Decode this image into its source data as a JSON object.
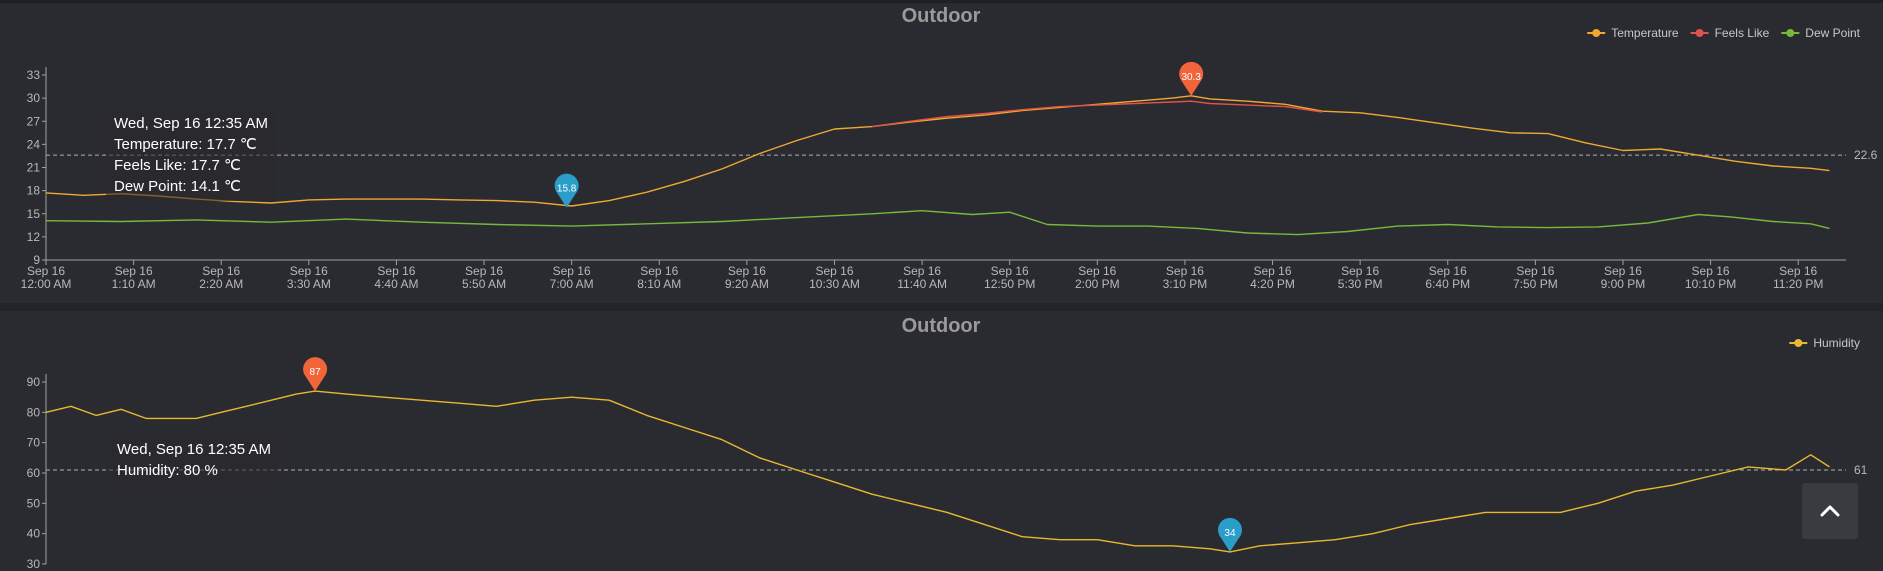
{
  "colors": {
    "temperature": "#f0a830",
    "feels_like": "#e0524a",
    "dew_point": "#78b83a",
    "humidity": "#e8b830",
    "max_marker": "#f2643a",
    "min_marker": "#2a9ec8",
    "axis": "#a0a0a0"
  },
  "tooltips": {
    "top": {
      "date": "Wed, Sep 16 12:35 AM",
      "temperature": "Temperature: 17.7 ℃",
      "feels_like": "Feels Like: 17.7 ℃",
      "dew_point": "Dew Point: 14.1 ℃"
    },
    "bottom": {
      "date": "Wed, Sep 16 12:35 AM",
      "humidity": "Humidity: 80 %"
    }
  },
  "scroll_top_icon": "chevron-up-icon",
  "chart_data": [
    {
      "type": "line",
      "title": "Outdoor",
      "x_ticks": [
        "Sep 16|12:00 AM",
        "Sep 16|1:10 AM",
        "Sep 16|2:20 AM",
        "Sep 16|3:30 AM",
        "Sep 16|4:40 AM",
        "Sep 16|5:50 AM",
        "Sep 16|7:00 AM",
        "Sep 16|8:10 AM",
        "Sep 16|9:20 AM",
        "Sep 16|10:30 AM",
        "Sep 16|11:40 AM",
        "Sep 16|12:50 PM",
        "Sep 16|2:00 PM",
        "Sep 16|3:10 PM",
        "Sep 16|4:20 PM",
        "Sep 16|5:30 PM",
        "Sep 16|6:40 PM",
        "Sep 16|7:50 PM",
        "Sep 16|9:00 PM",
        "Sep 16|10:10 PM",
        "Sep 16|11:20 PM"
      ],
      "x_minutes": [
        0,
        70,
        140,
        210,
        280,
        350,
        420,
        490,
        560,
        630,
        700,
        770,
        840,
        910,
        980,
        1050,
        1120,
        1190,
        1260,
        1330,
        1400
      ],
      "x_range": [
        0,
        1435
      ],
      "y_ticks": [
        9,
        12,
        15,
        18,
        21,
        24,
        27,
        30,
        33
      ],
      "ylim": [
        9,
        33
      ],
      "legend": [
        "Temperature",
        "Feels Like",
        "Dew Point"
      ],
      "legend_position": "top-right",
      "mark_line": {
        "value": 22.6,
        "label": "22.6"
      },
      "max_point": {
        "label": "30.3",
        "x": 915,
        "y": 30.3
      },
      "min_point": {
        "label": "15.8",
        "x": 416,
        "y": 15.8
      },
      "series": [
        {
          "name": "Temperature",
          "key": "temperature",
          "x": [
            0,
            30,
            60,
            90,
            120,
            150,
            180,
            210,
            240,
            270,
            300,
            330,
            360,
            390,
            420,
            450,
            480,
            510,
            540,
            570,
            600,
            630,
            660,
            690,
            720,
            750,
            780,
            810,
            840,
            870,
            900,
            915,
            930,
            960,
            990,
            1020,
            1050,
            1080,
            1110,
            1140,
            1170,
            1200,
            1230,
            1260,
            1290,
            1320,
            1350,
            1380,
            1410,
            1425
          ],
          "values": [
            17.7,
            17.4,
            17.6,
            17.3,
            16.9,
            16.6,
            16.4,
            16.8,
            16.9,
            16.9,
            16.9,
            16.8,
            16.7,
            16.5,
            16.0,
            16.7,
            17.8,
            19.2,
            20.8,
            22.8,
            24.5,
            26.0,
            26.3,
            26.9,
            27.4,
            27.8,
            28.4,
            28.8,
            29.2,
            29.6,
            30.0,
            30.3,
            29.9,
            29.6,
            29.2,
            28.3,
            28.1,
            27.5,
            26.8,
            26.1,
            25.5,
            25.4,
            24.2,
            23.2,
            23.4,
            22.6,
            21.8,
            21.2,
            20.9,
            20.6
          ]
        },
        {
          "name": "Feels Like",
          "key": "feels_like",
          "x": [
            660,
            690,
            720,
            750,
            780,
            810,
            840,
            870,
            900,
            915,
            930,
            960,
            990,
            1020
          ],
          "values": [
            26.3,
            27.0,
            27.6,
            28.0,
            28.5,
            28.9,
            29.1,
            29.3,
            29.5,
            29.6,
            29.3,
            29.1,
            28.9,
            28.2
          ]
        },
        {
          "name": "Dew Point",
          "key": "dew_point",
          "x": [
            0,
            60,
            120,
            180,
            240,
            300,
            360,
            420,
            480,
            540,
            600,
            660,
            700,
            740,
            770,
            800,
            840,
            880,
            920,
            960,
            1000,
            1040,
            1080,
            1120,
            1160,
            1200,
            1240,
            1280,
            1320,
            1345,
            1380,
            1410,
            1425
          ],
          "values": [
            14.1,
            14.0,
            14.2,
            13.9,
            14.3,
            13.9,
            13.6,
            13.4,
            13.7,
            14.0,
            14.5,
            15.0,
            15.4,
            14.9,
            15.2,
            13.6,
            13.4,
            13.4,
            13.1,
            12.5,
            12.3,
            12.7,
            13.4,
            13.6,
            13.3,
            13.2,
            13.3,
            13.8,
            14.9,
            14.6,
            14.0,
            13.7,
            13.1
          ]
        }
      ]
    },
    {
      "type": "line",
      "title": "Outdoor",
      "y_ticks": [
        30,
        40,
        50,
        60,
        70,
        80,
        90
      ],
      "ylim": [
        30,
        90
      ],
      "legend": [
        "Humidity"
      ],
      "legend_position": "top-right",
      "mark_line": {
        "value": 61,
        "label": "61"
      },
      "max_point": {
        "label": "87",
        "x": 215,
        "y": 87
      },
      "min_point": {
        "label": "34",
        "x": 946,
        "y": 34
      },
      "series": [
        {
          "name": "Humidity",
          "key": "humidity",
          "x": [
            0,
            20,
            40,
            60,
            80,
            100,
            120,
            140,
            160,
            180,
            200,
            215,
            240,
            270,
            300,
            330,
            360,
            390,
            420,
            450,
            480,
            510,
            540,
            570,
            600,
            630,
            660,
            690,
            720,
            750,
            780,
            810,
            840,
            870,
            900,
            930,
            946,
            970,
            1000,
            1030,
            1060,
            1090,
            1120,
            1150,
            1180,
            1210,
            1240,
            1270,
            1300,
            1330,
            1360,
            1390,
            1410,
            1425
          ],
          "values": [
            80,
            82,
            79,
            81,
            78,
            78,
            78,
            80,
            82,
            84,
            86,
            87,
            86,
            85,
            84,
            83,
            82,
            84,
            85,
            84,
            79,
            75,
            71,
            65,
            61,
            57,
            53,
            50,
            47,
            43,
            39,
            38,
            38,
            36,
            36,
            35,
            34,
            36,
            37,
            38,
            40,
            43,
            45,
            47,
            47,
            47,
            50,
            54,
            56,
            59,
            62,
            61,
            66,
            62
          ]
        }
      ]
    }
  ]
}
